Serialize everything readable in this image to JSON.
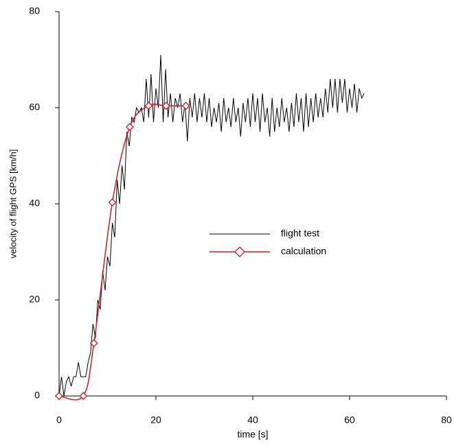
{
  "chart_data": {
    "type": "line",
    "x_label": "time [s]",
    "y_label": "velocity of flight GPS [km/h]",
    "xlim": [
      0,
      80
    ],
    "xticks": [
      0,
      20,
      40,
      60,
      80
    ],
    "ylim": [
      0,
      80
    ],
    "yticks": [
      0,
      20,
      40,
      60,
      80
    ],
    "legend": "center",
    "series": [
      {
        "name": "flight test",
        "color": "#000000",
        "marker": "none",
        "x": [
          0,
          0.5,
          1,
          1.5,
          2,
          2.5,
          3,
          3.5,
          4,
          4.5,
          5,
          5.5,
          6,
          6.5,
          7,
          7.5,
          8,
          8.5,
          9,
          9.5,
          10,
          10.5,
          11,
          11.5,
          12,
          12.5,
          13,
          13.5,
          14,
          14.5,
          15,
          15.5,
          16,
          16.5,
          17,
          17.5,
          18,
          18.5,
          19,
          19.5,
          20,
          20.5,
          21,
          21.5,
          22,
          22.5,
          23,
          23.5,
          24,
          24.5,
          25,
          25.5,
          26,
          26.5,
          27,
          27.5,
          28,
          28.5,
          29,
          29.5,
          30,
          30.5,
          31,
          31.5,
          32,
          32.5,
          33,
          33.5,
          34,
          34.5,
          35,
          35.5,
          36,
          36.5,
          37,
          37.5,
          38,
          38.5,
          39,
          39.5,
          40,
          40.5,
          41,
          41.5,
          42,
          42.5,
          43,
          43.5,
          44,
          44.5,
          45,
          45.5,
          46,
          46.5,
          47,
          47.5,
          48,
          48.5,
          49,
          49.5,
          50,
          50.5,
          51,
          51.5,
          52,
          52.5,
          53,
          53.5,
          54,
          54.5,
          55,
          55.5,
          56,
          56.5,
          57,
          57.5,
          58,
          58.5,
          59,
          59.5,
          60,
          60.5,
          61,
          61.5,
          62,
          62.5,
          63
        ],
        "values": [
          0,
          4,
          0,
          3,
          4,
          2,
          4,
          4,
          7,
          4,
          4,
          4,
          7,
          9,
          15,
          12,
          20,
          18,
          26,
          22,
          29,
          27,
          36,
          33,
          45,
          40,
          48,
          43,
          55,
          52,
          58,
          57,
          60,
          59,
          60,
          57,
          66,
          58,
          67,
          57,
          64,
          60,
          71,
          57,
          68,
          58,
          63,
          57,
          62,
          60,
          63,
          57,
          61,
          53,
          62,
          58,
          63,
          57,
          62,
          58,
          63,
          57,
          62,
          56,
          60,
          57,
          61,
          55,
          62,
          57,
          60,
          56,
          62,
          57,
          60,
          54,
          61,
          57,
          62,
          56,
          63,
          57,
          62,
          55,
          63,
          57,
          60,
          54,
          62,
          55,
          60,
          56,
          62,
          57,
          60,
          55,
          61,
          56,
          63,
          57,
          62,
          55,
          63,
          56,
          62,
          57,
          63,
          58,
          62,
          58,
          64,
          59,
          66,
          60,
          66,
          59,
          66,
          61,
          66,
          59,
          64,
          60,
          65,
          59,
          64,
          62,
          63
        ]
      },
      {
        "name": "calculation",
        "color": "#e0141e",
        "marker": "diamond",
        "x": [
          0,
          5,
          7.2,
          11,
          14.6,
          18.5,
          22.1,
          26.2
        ],
        "values": [
          0,
          0,
          11,
          40.3,
          56,
          60.4,
          60.4,
          60.4
        ]
      }
    ]
  }
}
